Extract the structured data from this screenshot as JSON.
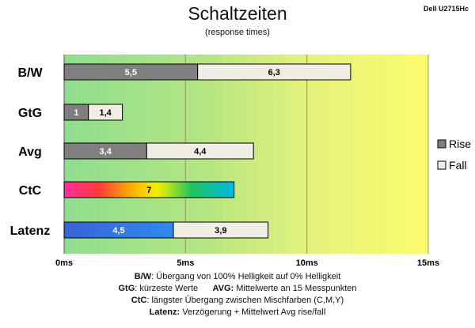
{
  "monitor": "Dell U2715Hc",
  "chart_data": {
    "type": "bar",
    "orientation": "horizontal",
    "stacked": true,
    "title": "Schaltzeiten",
    "subtitle": "(response times)",
    "categories": [
      "B/W",
      "GtG",
      "Avg",
      "CtC",
      "Latenz"
    ],
    "series": [
      {
        "name": "Rise",
        "color": "#7f7f7f",
        "values": [
          5.5,
          1,
          3.4,
          7,
          4.5
        ]
      },
      {
        "name": "Fall",
        "color": "#efede4",
        "values": [
          6.3,
          1.4,
          4.4,
          null,
          3.9
        ]
      }
    ],
    "data_labels": {
      "rise": [
        "5,5",
        "1",
        "3,4",
        "7",
        "4,5"
      ],
      "fall": [
        "6,3",
        "1,4",
        "4,4",
        "",
        "3,9"
      ]
    },
    "special_fills": {
      "CtC": "rainbow-gradient",
      "Latenz": "blue-gradient"
    },
    "xlim": [
      0,
      15
    ],
    "xticks": [
      0,
      5,
      10,
      15
    ],
    "xtick_labels": [
      "0ms",
      "5ms",
      "10ms",
      "15ms"
    ],
    "gridlines": "vertical",
    "legend_position": "right"
  },
  "footnotes": {
    "line1_key": "B/W",
    "line1_text": ":  Übergang von 100% Helligkeit auf 0% Helligkeit",
    "line2_key": "GtG",
    "line2_text": ": kürzeste  Werte",
    "line2_key2": "AVG:",
    "line2_text2": " Mittelwerte  an 15 Messpunkten",
    "line3_key": "CtC",
    "line3_text": ": längster Übergang  zwischen Mischfarben  (C,M,Y)",
    "line4_key": "Latenz:",
    "line4_text": " Verzögerung  + Mittelwert  Avg rise/fall"
  }
}
